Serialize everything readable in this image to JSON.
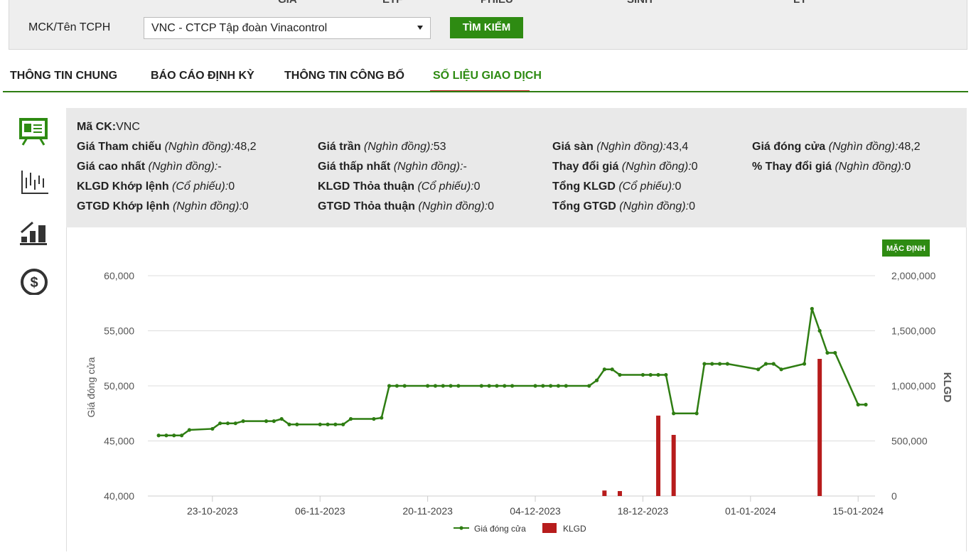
{
  "top_nav": [
    "GIÁ",
    "ETF",
    "PHIẾU",
    "SINH",
    "LÝ"
  ],
  "search": {
    "label": "MCK/Tên TCPH",
    "selected": "VNC - CTCP Tập đoàn Vinacontrol",
    "button": "TÌM KIẾM"
  },
  "tabs": [
    "THÔNG TIN CHUNG",
    "BÁO CÁO ĐỊNH KỲ",
    "THÔNG TIN CÔNG BỐ",
    "SỐ LIỆU GIAO DỊCH"
  ],
  "active_tab": 3,
  "info": [
    [
      {
        "label": "Mã CK:",
        "value": "VNC"
      }
    ],
    [
      {
        "label": "Giá Tham chiếu",
        "unit": "(Nghìn đồng):",
        "value": "48,2"
      },
      {
        "label": "Giá trần",
        "unit": "(Nghìn đồng):",
        "value": "53"
      },
      {
        "label": "Giá sàn",
        "unit": "(Nghìn đồng):",
        "value": "43,4"
      },
      {
        "label": "Giá đóng cửa",
        "unit": "(Nghìn đồng):",
        "value": "48,2"
      }
    ],
    [
      {
        "label": "Giá cao nhất",
        "unit": "(Nghìn đồng):",
        "value": "-"
      },
      {
        "label": "Giá thấp nhất",
        "unit": "(Nghìn đồng):",
        "value": "-"
      },
      {
        "label": "Thay đổi giá",
        "unit": "(Nghìn đồng):",
        "value": "0"
      },
      {
        "label": "% Thay đổi giá",
        "unit": "(Nghìn đồng):",
        "value": "0"
      }
    ],
    [
      {
        "label": "KLGD Khớp lệnh",
        "unit": "(Cổ phiếu):",
        "value": "0"
      },
      {
        "label": "KLGD Thỏa thuận",
        "unit": "(Cổ phiếu):",
        "value": "0"
      },
      {
        "label": "Tổng KLGD",
        "unit": "(Cổ phiếu):",
        "value": "0"
      }
    ],
    [
      {
        "label": "GTGD Khớp lệnh",
        "unit": "(Nghìn đồng):",
        "value": "0"
      },
      {
        "label": "GTGD Thỏa thuận",
        "unit": "(Nghìn đồng):",
        "value": "0"
      },
      {
        "label": "Tổng GTGD",
        "unit": "(Nghìn đồng):",
        "value": "0"
      }
    ]
  ],
  "chart_toolbar": {
    "button": "MẶC ĐỊNH"
  },
  "chart_data": {
    "type": "line",
    "ylabel": "Giá đóng cửa",
    "y2label": "KLGD",
    "x": [
      "2023-10-16",
      "2023-10-17",
      "2023-10-18",
      "2023-10-19",
      "2023-10-20",
      "2023-10-23",
      "2023-10-24",
      "2023-10-25",
      "2023-10-26",
      "2023-10-27",
      "2023-10-30",
      "2023-10-31",
      "2023-11-01",
      "2023-11-02",
      "2023-11-03",
      "2023-11-06",
      "2023-11-07",
      "2023-11-08",
      "2023-11-09",
      "2023-11-10",
      "2023-11-13",
      "2023-11-14",
      "2023-11-15",
      "2023-11-16",
      "2023-11-17",
      "2023-11-20",
      "2023-11-21",
      "2023-11-22",
      "2023-11-23",
      "2023-11-24",
      "2023-11-27",
      "2023-11-28",
      "2023-11-29",
      "2023-11-30",
      "2023-12-01",
      "2023-12-04",
      "2023-12-05",
      "2023-12-06",
      "2023-12-07",
      "2023-12-08",
      "2023-12-11",
      "2023-12-12",
      "2023-12-13",
      "2023-12-14",
      "2023-12-15",
      "2023-12-18",
      "2023-12-19",
      "2023-12-20",
      "2023-12-21",
      "2023-12-22",
      "2023-12-25",
      "2023-12-26",
      "2023-12-27",
      "2023-12-28",
      "2023-12-29",
      "2024-01-02",
      "2024-01-03",
      "2024-01-04",
      "2024-01-05",
      "2024-01-08",
      "2024-01-09",
      "2024-01-10",
      "2024-01-11",
      "2024-01-12",
      "2024-01-15",
      "2024-01-16"
    ],
    "series": [
      {
        "name": "Giá đóng cửa",
        "type": "line",
        "color": "#2e7d12",
        "values": [
          45500,
          45500,
          45500,
          45500,
          46000,
          46100,
          46600,
          46600,
          46600,
          46800,
          46800,
          46800,
          47000,
          46500,
          46500,
          46500,
          46500,
          46500,
          46500,
          47000,
          47000,
          47100,
          50000,
          50000,
          50000,
          50000,
          50000,
          50000,
          50000,
          50000,
          50000,
          50000,
          50000,
          50000,
          50000,
          50000,
          50000,
          50000,
          50000,
          50000,
          50000,
          50500,
          51500,
          51500,
          51000,
          51000,
          51000,
          51000,
          51000,
          47500,
          47500,
          52000,
          52000,
          52000,
          52000,
          51500,
          52000,
          52000,
          51500,
          52000,
          57000,
          55000,
          53000,
          53000,
          48300,
          48300
        ]
      },
      {
        "name": "KLGD",
        "type": "bar",
        "axis": "y2",
        "color": "#b71c1c",
        "values": [
          0,
          0,
          0,
          0,
          0,
          0,
          0,
          0,
          0,
          0,
          0,
          0,
          0,
          0,
          0,
          0,
          0,
          0,
          0,
          0,
          0,
          0,
          0,
          0,
          0,
          0,
          0,
          0,
          0,
          0,
          0,
          0,
          0,
          0,
          0,
          0,
          0,
          0,
          0,
          0,
          0,
          0,
          50000,
          0,
          45000,
          0,
          0,
          730000,
          0,
          555000,
          0,
          0,
          0,
          0,
          0,
          0,
          0,
          0,
          0,
          0,
          0,
          1245000,
          0,
          0,
          0,
          0
        ]
      }
    ],
    "ylim": [
      40000,
      60000
    ],
    "yticks": [
      {
        "value": 40000,
        "label": "40,000"
      },
      {
        "value": 45000,
        "label": "45,000"
      },
      {
        "value": 50000,
        "label": "50,000"
      },
      {
        "value": 55000,
        "label": "55,000"
      },
      {
        "value": 60000,
        "label": "60,000"
      }
    ],
    "y2lim": [
      0,
      2000000
    ],
    "y2ticks": [
      0,
      {
        "value": 500000,
        "label": "500,000"
      },
      {
        "value": 1000000,
        "label": "1,000,000"
      },
      {
        "value": 1500000,
        "label": "1,500,000"
      },
      {
        "value": 2000000,
        "label": "2,000,000"
      }
    ],
    "xticks": [
      {
        "value": "2023-10-23",
        "label": "23-10-2023"
      },
      {
        "value": "2023-11-06",
        "label": "06-11-2023"
      },
      {
        "value": "2023-11-20",
        "label": "20-11-2023"
      },
      {
        "value": "2023-12-04",
        "label": "04-12-2023"
      },
      {
        "value": "2023-12-18",
        "label": "18-12-2023"
      },
      {
        "value": "2024-01-01",
        "label": "01-01-2024"
      },
      {
        "value": "2024-01-15",
        "label": "15-01-2024"
      }
    ],
    "grid": true
  }
}
